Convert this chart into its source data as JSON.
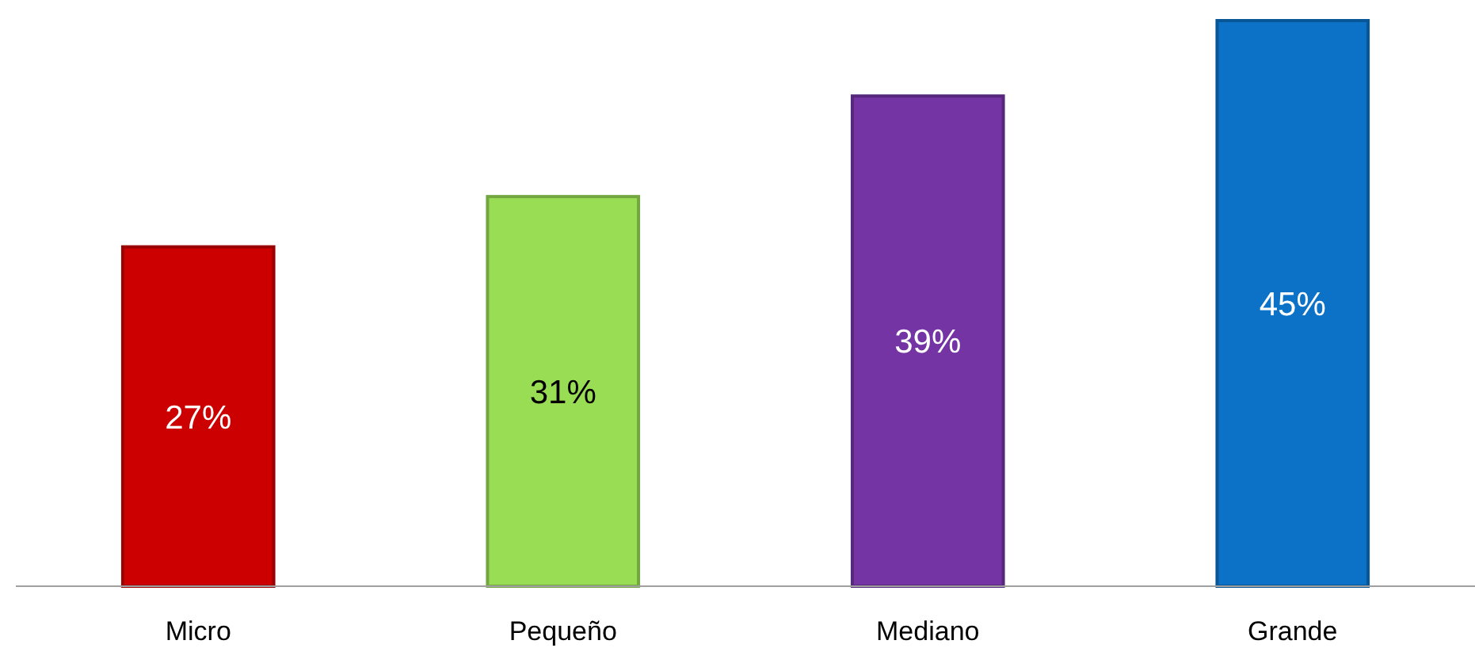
{
  "chart_data": {
    "type": "bar",
    "categories": [
      "Micro",
      "Pequeño",
      "Mediano",
      "Grande"
    ],
    "values": [
      27,
      31,
      39,
      45
    ],
    "value_labels": [
      "27%",
      "31%",
      "39%",
      "45%"
    ],
    "colors": [
      "#cc0000",
      "#99dd55",
      "#7434a4",
      "#0b72c8"
    ]
  }
}
